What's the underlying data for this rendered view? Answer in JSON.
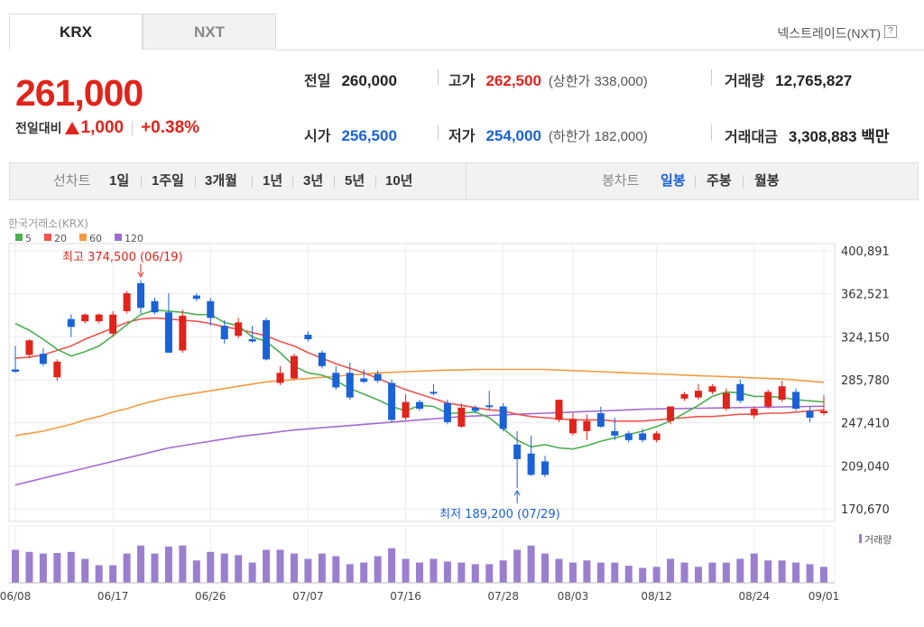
{
  "tabs": [
    {
      "label": "KRX",
      "active": true
    },
    {
      "label": "NXT",
      "active": false
    }
  ],
  "nxt_link": "넥스트레이드(NXT)",
  "help_icon_char": "?",
  "price": {
    "current": "261,000",
    "change_label": "전일대비",
    "change_amount": "1,000",
    "change_pct": "+0.38%",
    "direction": "up",
    "up_color": "#e0241b",
    "down_color": "#1a62d6"
  },
  "stats": {
    "prev_close": {
      "label": "전일",
      "value": "260,000"
    },
    "open": {
      "label": "시가",
      "value": "256,500"
    },
    "high": {
      "label": "고가",
      "value": "262,500",
      "limit_label": "(상한가 338,000)"
    },
    "low": {
      "label": "저가",
      "value": "254,000",
      "limit_label": "(하한가 182,000)"
    },
    "volume": {
      "label": "거래량",
      "value": "12,765,827"
    },
    "turnover": {
      "label": "거래대금",
      "value": "3,308,883 백만"
    }
  },
  "period_bar": {
    "line_chart_label": "선차트",
    "periods": [
      "1일",
      "1주일",
      "3개월",
      "1년",
      "3년",
      "5년",
      "10년"
    ],
    "candle_chart_label": "봉차트",
    "candle_periods": [
      "일봉",
      "주봉",
      "월봉"
    ],
    "active_candle_period": "일봉"
  },
  "chart_data": {
    "type": "candlestick",
    "source": "한국거래소(KRX)",
    "legend": [
      {
        "name": "5",
        "color": "#4caf50"
      },
      {
        "name": "20",
        "color": "#ef5350"
      },
      {
        "name": "60",
        "color": "#f49a42"
      },
      {
        "name": "120",
        "color": "#a36bd2"
      }
    ],
    "y_ticks": [
      "400,891",
      "362,521",
      "324,150",
      "285,780",
      "247,410",
      "209,040",
      "170,670"
    ],
    "y_tick_values": [
      400891,
      362521,
      324150,
      285780,
      247410,
      209040,
      170670
    ],
    "ylim": [
      170670,
      400891
    ],
    "x_ticks": [
      "06/08",
      "06/17",
      "06/26",
      "07/07",
      "07/16",
      "07/28",
      "08/03",
      "08/12",
      "08/24",
      "09/01"
    ],
    "x_tick_index": [
      0,
      7,
      14,
      21,
      28,
      35,
      40,
      46,
      53,
      58
    ],
    "volume_label": "거래량",
    "high_annotation": "최고 374,500 (06/19)",
    "high_index": 9,
    "high_value": 374500,
    "low_annotation": "최저 189,200 (07/29)",
    "low_index": 36,
    "low_value": 189200,
    "candles": [
      {
        "o": 295000,
        "h": 316000,
        "c": 293000,
        "l": 292000,
        "v": 0.62
      },
      {
        "o": 308000,
        "h": 322000,
        "c": 321000,
        "l": 305000,
        "v": 0.58
      },
      {
        "o": 309000,
        "h": 314000,
        "c": 300000,
        "l": 298000,
        "v": 0.55
      },
      {
        "o": 288000,
        "h": 304000,
        "c": 302000,
        "l": 285000,
        "v": 0.56
      },
      {
        "o": 340000,
        "h": 344000,
        "c": 333000,
        "l": 324000,
        "v": 0.58
      },
      {
        "o": 338000,
        "h": 345000,
        "c": 344000,
        "l": 336000,
        "v": 0.45
      },
      {
        "o": 338000,
        "h": 345000,
        "c": 344000,
        "l": 336000,
        "v": 0.33
      },
      {
        "o": 327000,
        "h": 347000,
        "c": 344000,
        "l": 324000,
        "v": 0.33
      },
      {
        "o": 347000,
        "h": 365000,
        "c": 363000,
        "l": 345000,
        "v": 0.55
      },
      {
        "o": 372000,
        "h": 374500,
        "c": 350000,
        "l": 345000,
        "v": 0.7
      },
      {
        "o": 356000,
        "h": 359000,
        "c": 346000,
        "l": 344000,
        "v": 0.55
      },
      {
        "o": 346000,
        "h": 363000,
        "c": 310000,
        "l": 310000,
        "v": 0.68
      },
      {
        "o": 312000,
        "h": 348000,
        "c": 343000,
        "l": 310000,
        "v": 0.7
      },
      {
        "o": 361000,
        "h": 363000,
        "c": 358000,
        "l": 356000,
        "v": 0.42
      },
      {
        "o": 356000,
        "h": 359000,
        "c": 341000,
        "l": 334000,
        "v": 0.58
      },
      {
        "o": 334000,
        "h": 339000,
        "c": 322000,
        "l": 318000,
        "v": 0.55
      },
      {
        "o": 325000,
        "h": 341000,
        "c": 337000,
        "l": 323000,
        "v": 0.52
      },
      {
        "o": 322000,
        "h": 334000,
        "c": 320000,
        "l": 319000,
        "v": 0.38
      },
      {
        "o": 339000,
        "h": 341000,
        "c": 304000,
        "l": 303000,
        "v": 0.62
      },
      {
        "o": 283000,
        "h": 298000,
        "c": 292000,
        "l": 281000,
        "v": 0.62
      },
      {
        "o": 287000,
        "h": 309000,
        "c": 307000,
        "l": 286000,
        "v": 0.55
      },
      {
        "o": 326000,
        "h": 329000,
        "c": 322000,
        "l": 320000,
        "v": 0.45
      },
      {
        "o": 310000,
        "h": 312000,
        "c": 298000,
        "l": 296000,
        "v": 0.55
      },
      {
        "o": 292000,
        "h": 298000,
        "c": 279000,
        "l": 277000,
        "v": 0.5
      },
      {
        "o": 292000,
        "h": 301000,
        "c": 270000,
        "l": 268000,
        "v": 0.35
      },
      {
        "o": 287000,
        "h": 295000,
        "c": 284000,
        "l": 283000,
        "v": 0.38
      },
      {
        "o": 291000,
        "h": 294000,
        "c": 285000,
        "l": 283000,
        "v": 0.5
      },
      {
        "o": 283000,
        "h": 286000,
        "c": 250000,
        "l": 248000,
        "v": 0.65
      },
      {
        "o": 252000,
        "h": 273000,
        "c": 266000,
        "l": 250000,
        "v": 0.45
      },
      {
        "o": 266000,
        "h": 268000,
        "c": 260000,
        "l": 258000,
        "v": 0.38
      },
      {
        "o": 275000,
        "h": 282000,
        "c": 274000,
        "l": 272000,
        "v": 0.45
      },
      {
        "o": 265000,
        "h": 268000,
        "c": 248000,
        "l": 246000,
        "v": 0.4
      },
      {
        "o": 244000,
        "h": 265000,
        "c": 261000,
        "l": 243000,
        "v": 0.38
      },
      {
        "o": 261000,
        "h": 263000,
        "c": 258000,
        "l": 256000,
        "v": 0.35
      },
      {
        "o": 263000,
        "h": 276000,
        "c": 262000,
        "l": 259000,
        "v": 0.35
      },
      {
        "o": 262000,
        "h": 265000,
        "c": 242000,
        "l": 240000,
        "v": 0.42
      },
      {
        "o": 228000,
        "h": 240000,
        "c": 215000,
        "l": 189200,
        "v": 0.62
      },
      {
        "o": 220000,
        "h": 236000,
        "c": 201000,
        "l": 200000,
        "v": 0.7
      },
      {
        "o": 213000,
        "h": 218000,
        "c": 201000,
        "l": 199000,
        "v": 0.55
      },
      {
        "o": 250000,
        "h": 268000,
        "c": 268000,
        "l": 248000,
        "v": 0.45
      },
      {
        "o": 238000,
        "h": 256000,
        "c": 251000,
        "l": 236000,
        "v": 0.38
      },
      {
        "o": 240000,
        "h": 255000,
        "c": 249000,
        "l": 232000,
        "v": 0.42
      },
      {
        "o": 256000,
        "h": 262000,
        "c": 244000,
        "l": 243000,
        "v": 0.38
      },
      {
        "o": 240000,
        "h": 252000,
        "c": 236000,
        "l": 232000,
        "v": 0.38
      },
      {
        "o": 238000,
        "h": 240000,
        "c": 232000,
        "l": 230000,
        "v": 0.32
      },
      {
        "o": 238000,
        "h": 242000,
        "c": 232000,
        "l": 230000,
        "v": 0.28
      },
      {
        "o": 232000,
        "h": 240000,
        "c": 238000,
        "l": 230000,
        "v": 0.3
      },
      {
        "o": 249000,
        "h": 260000,
        "c": 262000,
        "l": 246000,
        "v": 0.45
      },
      {
        "o": 269000,
        "h": 275000,
        "c": 273000,
        "l": 267000,
        "v": 0.38
      },
      {
        "o": 270000,
        "h": 282000,
        "c": 276000,
        "l": 268000,
        "v": 0.3
      },
      {
        "o": 275000,
        "h": 282000,
        "c": 280000,
        "l": 273000,
        "v": 0.38
      },
      {
        "o": 260000,
        "h": 278000,
        "c": 274000,
        "l": 258000,
        "v": 0.38
      },
      {
        "o": 282000,
        "h": 286000,
        "c": 267000,
        "l": 265000,
        "v": 0.45
      },
      {
        "o": 254000,
        "h": 262000,
        "c": 260000,
        "l": 251000,
        "v": 0.55
      },
      {
        "o": 262000,
        "h": 277000,
        "c": 275000,
        "l": 260000,
        "v": 0.42
      },
      {
        "o": 268000,
        "h": 285000,
        "c": 280000,
        "l": 266000,
        "v": 0.42
      },
      {
        "o": 275000,
        "h": 278000,
        "c": 260000,
        "l": 258000,
        "v": 0.38
      },
      {
        "o": 258000,
        "h": 262000,
        "c": 252000,
        "l": 248000,
        "v": 0.35
      },
      {
        "o": 256000,
        "h": 272000,
        "c": 258000,
        "l": 254000,
        "v": 0.3
      }
    ],
    "ma5": [
      336000,
      330000,
      322000,
      313000,
      307000,
      311000,
      316000,
      325000,
      335000,
      344000,
      348000,
      347000,
      346000,
      344000,
      344000,
      337000,
      334000,
      324000,
      320000,
      310000,
      298000,
      292000,
      290000,
      285000,
      278000,
      273000,
      268000,
      262000,
      258000,
      263000,
      262000,
      256000,
      256000,
      257000,
      252000,
      242000,
      232000,
      226000,
      228000,
      225000,
      224000,
      227000,
      231000,
      234000,
      237000,
      240000,
      244000,
      249000,
      256000,
      263000,
      271000,
      275000,
      274000,
      271000,
      271000,
      270000,
      268000,
      267000,
      266000
    ],
    "ma20": [
      305000,
      306000,
      308000,
      312000,
      316000,
      322000,
      327000,
      332000,
      337000,
      340000,
      341000,
      340000,
      339000,
      338000,
      336000,
      333000,
      331000,
      328000,
      325000,
      320000,
      316000,
      310000,
      305000,
      300000,
      296000,
      292000,
      287000,
      282000,
      277000,
      273000,
      269000,
      265000,
      263000,
      261000,
      259000,
      258000,
      255000,
      253000,
      252000,
      251000,
      250000,
      250000,
      250000,
      249000,
      249000,
      249000,
      250000,
      251000,
      252000,
      253000,
      253000,
      254000,
      255000,
      255000,
      256000,
      256000,
      257000,
      258000,
      259000
    ],
    "ma60": [
      236000,
      238000,
      240000,
      243000,
      246000,
      250000,
      253000,
      257000,
      260000,
      264000,
      267000,
      270000,
      272000,
      274000,
      276000,
      278000,
      280000,
      282000,
      284000,
      285000,
      286000,
      287000,
      288000,
      289000,
      290000,
      291000,
      292000,
      292500,
      293000,
      293500,
      294000,
      294500,
      294500,
      295000,
      295000,
      295000,
      295000,
      295000,
      295000,
      294500,
      294000,
      293500,
      293000,
      292500,
      292000,
      291500,
      291000,
      290500,
      290000,
      289500,
      289000,
      288500,
      288000,
      287500,
      287000,
      286500,
      285500,
      284500,
      283500
    ],
    "ma120": [
      192000,
      195000,
      198000,
      201000,
      204000,
      207000,
      210000,
      213000,
      216000,
      219000,
      222000,
      225000,
      227000,
      229000,
      231000,
      233000,
      235000,
      236500,
      238000,
      239500,
      241000,
      242000,
      243000,
      244000,
      245000,
      246000,
      247000,
      248000,
      249000,
      250000,
      251000,
      252000,
      253000,
      253500,
      254000,
      254500,
      255000,
      255500,
      256000,
      256500,
      257000,
      257500,
      258000,
      258500,
      259000,
      259500,
      259800,
      260000,
      260200,
      260400,
      260600,
      260800,
      261000,
      261200,
      261400,
      261600,
      261800,
      262000,
      262200
    ]
  }
}
